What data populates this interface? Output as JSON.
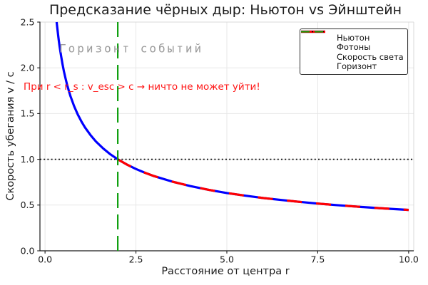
{
  "chart_data": {
    "type": "line",
    "title": "Предсказание чёрных дыр: Ньютон vs Эйнштейн",
    "xlabel": "Расстояние от центра r",
    "ylabel": "Скорость убегания v / c",
    "xlim": [
      -0.14,
      10.14
    ],
    "ylim": [
      0,
      2.5
    ],
    "xticks": [
      0,
      2.5,
      5,
      7.5,
      10
    ],
    "xtick_labels": [
      "0.0",
      "2.5",
      "5.0",
      "7.5",
      "10.0"
    ],
    "yticks": [
      0,
      0.5,
      1,
      1.5,
      2,
      2.5
    ],
    "ytick_labels": [
      "0.0",
      "0.5",
      "1.0",
      "1.5",
      "2.0",
      "2.5"
    ],
    "grid": true,
    "grid_color": "#e7e7e7",
    "legend_position": "top-right",
    "series": [
      {
        "name": "Ньютон",
        "color": "#0000ff",
        "line_style": "solid",
        "line_width": 3.2,
        "dash": null,
        "x": [
          0.32,
          0.34,
          0.36,
          0.38,
          0.4,
          0.44,
          0.48,
          0.52,
          0.56,
          0.6,
          0.65,
          0.7,
          0.8,
          0.9,
          1.0,
          1.1,
          1.25,
          1.4,
          1.6,
          1.8,
          2.0,
          2.25,
          2.5,
          2.75,
          3.0,
          3.5,
          4.0,
          4.5,
          5.0,
          5.5,
          6.0,
          6.5,
          7.0,
          7.5,
          8.0,
          8.5,
          9.0,
          9.5,
          10.0
        ],
        "y": [
          2.5,
          2.425,
          2.357,
          2.294,
          2.236,
          2.132,
          2.041,
          1.961,
          1.89,
          1.826,
          1.754,
          1.69,
          1.581,
          1.491,
          1.414,
          1.348,
          1.265,
          1.195,
          1.118,
          1.054,
          1.0,
          0.943,
          0.894,
          0.853,
          0.816,
          0.756,
          0.707,
          0.667,
          0.632,
          0.603,
          0.577,
          0.555,
          0.535,
          0.516,
          0.5,
          0.485,
          0.471,
          0.459,
          0.447
        ]
      },
      {
        "name": "Фотоны",
        "color": "#ff0000",
        "line_style": "dashed",
        "line_width": 3.2,
        "dash": [
          21,
          20
        ],
        "x": [
          2.0,
          2.25,
          2.5,
          2.75,
          3.0,
          3.5,
          4.0,
          4.5,
          5.0,
          5.5,
          6.0,
          6.5,
          7.0,
          7.5,
          8.0,
          8.5,
          9.0,
          9.5,
          10.0
        ],
        "y": [
          1.0,
          0.943,
          0.894,
          0.853,
          0.816,
          0.756,
          0.707,
          0.667,
          0.632,
          0.603,
          0.577,
          0.555,
          0.535,
          0.516,
          0.5,
          0.485,
          0.471,
          0.459,
          0.447
        ]
      },
      {
        "name": "Скорость света",
        "color": "#000000",
        "line_style": "dotted",
        "line_width": 1.6,
        "dash": [
          2,
          3.2
        ],
        "x": [
          -0.14,
          10.14
        ],
        "y": [
          1,
          1
        ]
      },
      {
        "name": "Горизонт",
        "color": "#10a010",
        "line_style": "dashed",
        "line_width": 2.2,
        "dash": [
          21,
          9
        ],
        "x": [
          2,
          2
        ],
        "y": [
          0,
          2.5
        ]
      }
    ],
    "annotations": [
      {
        "id": "event-horizon-label",
        "text": "Горизонт событий",
        "color": "#9b9b9b",
        "x": 0.39,
        "y": 2.21
      },
      {
        "id": "no-escape-note",
        "text": "При r < r_s : v_esc > c → ничто не может уйти!",
        "color": "#ff1414",
        "x": -0.59,
        "y": 1.79
      }
    ],
    "legend": [
      {
        "label": "Ньютон",
        "color": "#0000ff",
        "width": 3.2,
        "dash": null
      },
      {
        "label": "Фотоны",
        "color": "#ff0000",
        "width": 3.2,
        "dash": null
      },
      {
        "label": "Скорость света",
        "color": "#000000",
        "width": 1.6,
        "dash": [
          2,
          3
        ]
      },
      {
        "label": "Горизонт",
        "color": "#10a010",
        "width": 2.2,
        "dash": [
          12,
          7
        ]
      }
    ]
  }
}
